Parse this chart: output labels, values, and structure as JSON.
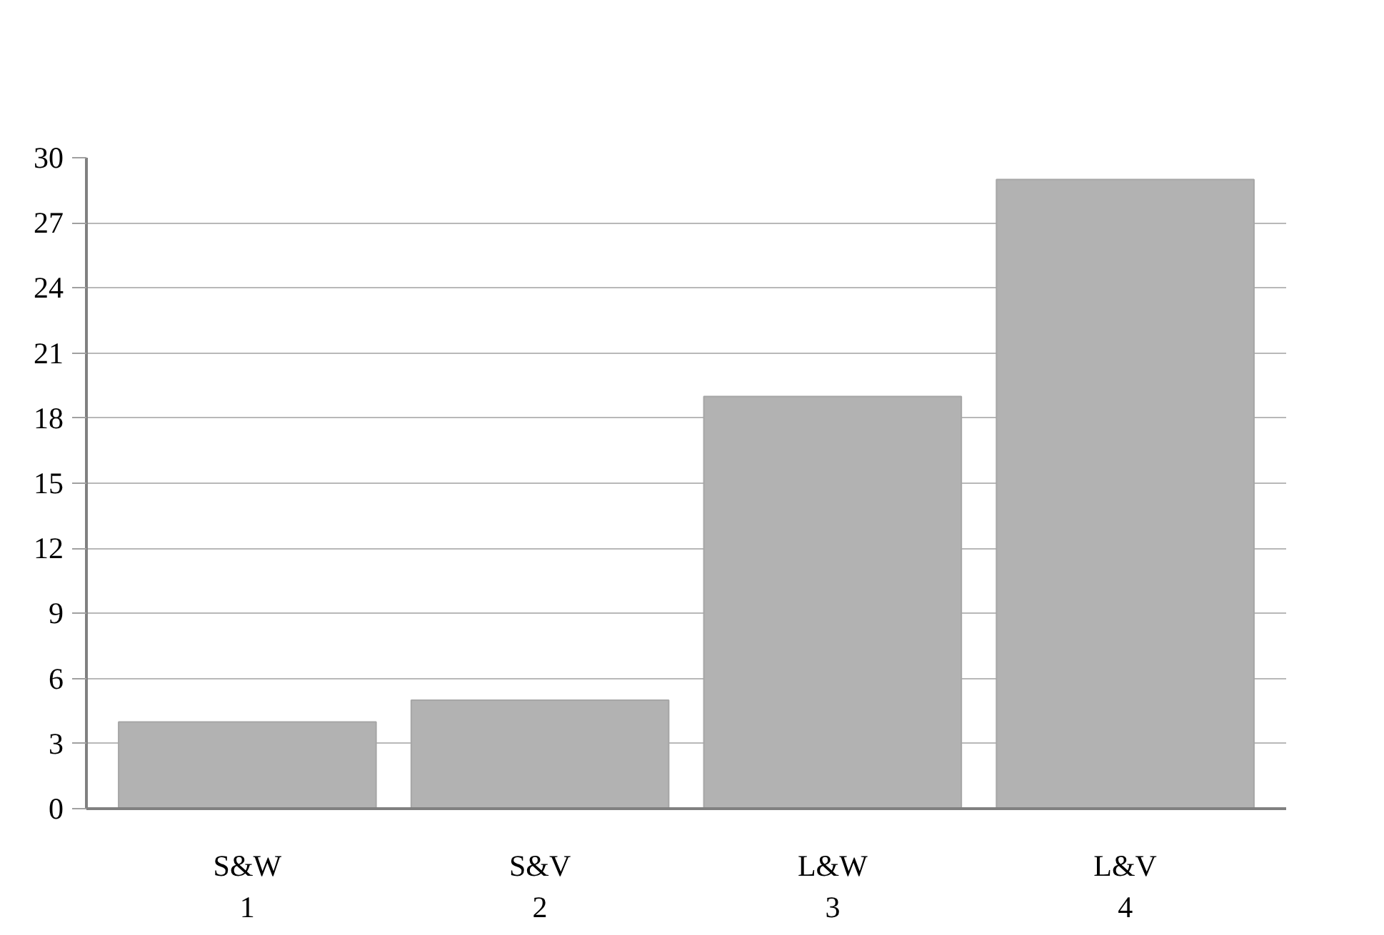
{
  "chart_data": {
    "type": "bar",
    "categories": [
      "S&W\n1",
      "S&V\n2",
      "L&W\n3",
      "L&V\n4"
    ],
    "values": [
      4,
      5,
      19,
      29
    ],
    "color": "#b2b2b2",
    "ylim": [
      0,
      30
    ],
    "yticks": [
      0,
      3,
      6,
      9,
      12,
      15,
      18,
      21,
      24,
      27,
      30
    ],
    "grid": "y"
  }
}
